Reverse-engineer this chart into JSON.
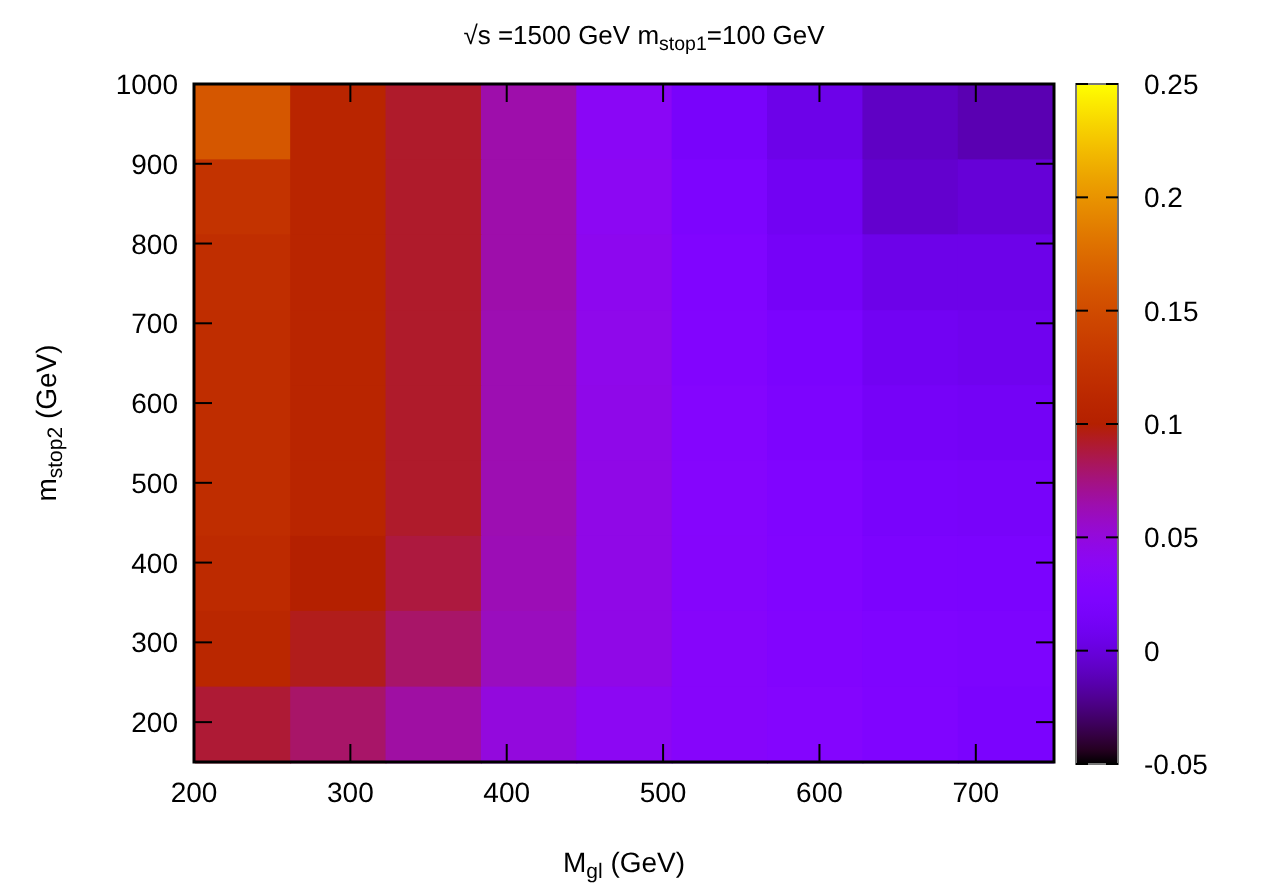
{
  "chart_data": {
    "type": "heatmap",
    "title": "√s =1500 GeV m$_{stop1}$=100 GeV",
    "xlabel": "M$_{gl}$ (GeV)",
    "ylabel": "m$_{stop2}$ (GeV)",
    "x": [
      231,
      292,
      353,
      414,
      475,
      536,
      597,
      658,
      719
    ],
    "y": [
      953,
      858,
      764,
      669,
      575,
      481,
      386,
      292,
      197
    ],
    "xlim": [
      200,
      750
    ],
    "xticks": [
      200,
      300,
      400,
      500,
      600,
      700
    ],
    "ylim": [
      150,
      1000
    ],
    "yticks": [
      200,
      300,
      400,
      500,
      600,
      700,
      800,
      900,
      1000
    ],
    "clim": [
      -0.05,
      0.25
    ],
    "cticks": [
      -0.05,
      0,
      0.05,
      0.1,
      0.15,
      0.2,
      0.25
    ],
    "cells": [
      [
        0.16,
        0.108,
        0.092,
        0.065,
        0.038,
        0.017,
        0.005,
        -0.008,
        -0.013
      ],
      [
        0.125,
        0.108,
        0.092,
        0.065,
        0.04,
        0.022,
        0.01,
        -0.005,
        -0.002
      ],
      [
        0.12,
        0.108,
        0.092,
        0.065,
        0.042,
        0.025,
        0.014,
        0.005,
        0.005
      ],
      [
        0.118,
        0.108,
        0.092,
        0.063,
        0.044,
        0.028,
        0.02,
        0.01,
        0.008
      ],
      [
        0.118,
        0.108,
        0.092,
        0.063,
        0.045,
        0.03,
        0.022,
        0.014,
        0.012
      ],
      [
        0.118,
        0.108,
        0.092,
        0.063,
        0.046,
        0.031,
        0.025,
        0.018,
        0.016
      ],
      [
        0.115,
        0.1,
        0.088,
        0.062,
        0.046,
        0.032,
        0.027,
        0.021,
        0.02
      ],
      [
        0.11,
        0.095,
        0.08,
        0.06,
        0.046,
        0.033,
        0.028,
        0.024,
        0.022
      ],
      [
        0.09,
        0.08,
        0.067,
        0.05,
        0.04,
        0.033,
        0.03,
        0.026,
        0.02
      ]
    ]
  }
}
